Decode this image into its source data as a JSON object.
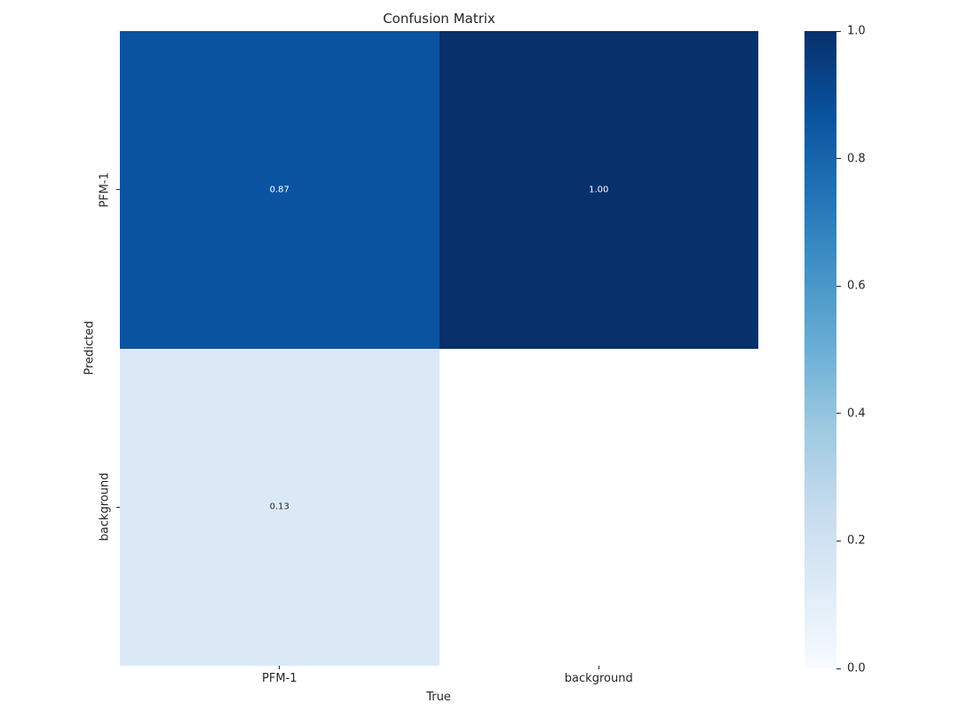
{
  "chart_data": {
    "type": "heatmap",
    "title": "Confusion Matrix",
    "xlabel": "True",
    "ylabel": "Predicted",
    "x_categories": [
      "PFM-1",
      "background"
    ],
    "y_categories": [
      "PFM-1",
      "background"
    ],
    "values": [
      [
        0.87,
        1.0
      ],
      [
        0.13,
        null
      ]
    ],
    "cell_labels": [
      [
        "0.87",
        "1.00"
      ],
      [
        "0.13",
        ""
      ]
    ],
    "cell_colors": [
      [
        "#0a53a1",
        "#08306b"
      ],
      [
        "#dbe9f6",
        "#ffffff"
      ]
    ],
    "annot_colors": [
      [
        "#ffffff",
        "#ffffff"
      ],
      [
        "#262626",
        "#262626"
      ]
    ],
    "vmin": 0.0,
    "vmax": 1.0,
    "grid": false,
    "legend_position": "colorbar-right",
    "colorbar": {
      "ticks": [
        {
          "label": "0.0",
          "value": 0.0
        },
        {
          "label": "0.2",
          "value": 0.2
        },
        {
          "label": "0.4",
          "value": 0.4
        },
        {
          "label": "0.6",
          "value": 0.6
        },
        {
          "label": "0.8",
          "value": 0.8
        },
        {
          "label": "1.0",
          "value": 1.0
        }
      ],
      "gradient_stops": [
        {
          "frac": 0.0,
          "color": "#f7fbff"
        },
        {
          "frac": 0.125,
          "color": "#deebf7"
        },
        {
          "frac": 0.25,
          "color": "#c6dbef"
        },
        {
          "frac": 0.375,
          "color": "#9ecae1"
        },
        {
          "frac": 0.5,
          "color": "#6baed6"
        },
        {
          "frac": 0.625,
          "color": "#4292c6"
        },
        {
          "frac": 0.75,
          "color": "#2171b5"
        },
        {
          "frac": 0.875,
          "color": "#08519c"
        },
        {
          "frac": 1.0,
          "color": "#08306b"
        }
      ]
    },
    "colors": {
      "background": "#ffffff",
      "text": "#262626",
      "annotation_light": "#ffffff",
      "annotation_dark": "#262626"
    }
  }
}
